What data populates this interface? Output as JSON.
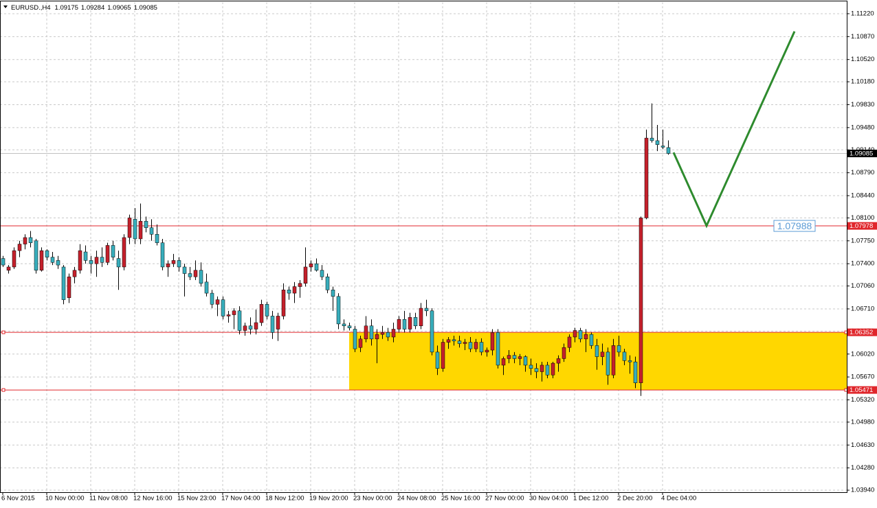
{
  "chart_data": {
    "type": "candlestick",
    "title": "EURUSD.,H4",
    "bull_color": "#c4202b",
    "bear_color": "#38aebc",
    "ylim": [
      1.03909,
      1.11398
    ],
    "yticks": [
      {
        "value": 1.1122,
        "label": "1.11220"
      },
      {
        "value": 1.1087,
        "label": "1.10870"
      },
      {
        "value": 1.1052,
        "label": "1.10520"
      },
      {
        "value": 1.1018,
        "label": "1.10180"
      },
      {
        "value": 1.0983,
        "label": "1.09830"
      },
      {
        "value": 1.0948,
        "label": "1.09480"
      },
      {
        "value": 1.0914,
        "label": "1.09140"
      },
      {
        "value": 1.0879,
        "label": "1.08790"
      },
      {
        "value": 1.0844,
        "label": "1.08440"
      },
      {
        "value": 1.081,
        "label": "1.08100"
      },
      {
        "value": 1.0775,
        "label": "1.07750"
      },
      {
        "value": 1.074,
        "label": "1.07400"
      },
      {
        "value": 1.0706,
        "label": "1.07060"
      },
      {
        "value": 1.0671,
        "label": "1.06710"
      },
      {
        "value": 1.0637,
        "label": "1.06370"
      },
      {
        "value": 1.0602,
        "label": "1.06020"
      },
      {
        "value": 1.0567,
        "label": "1.05670"
      },
      {
        "value": 1.0532,
        "label": "1.05320"
      },
      {
        "value": 1.0498,
        "label": "1.04980"
      },
      {
        "value": 1.0463,
        "label": "1.04630"
      },
      {
        "value": 1.0428,
        "label": "1.04280"
      },
      {
        "value": 1.0394,
        "label": "1.03940"
      }
    ],
    "grid": true,
    "categories": [
      "6 Nov 2015",
      null,
      null,
      null,
      null,
      null,
      null,
      null,
      "10 Nov 00:00",
      null,
      null,
      null,
      null,
      null,
      null,
      null,
      "11 Nov 08:00",
      null,
      null,
      null,
      null,
      null,
      null,
      null,
      "12 Nov 16:00",
      null,
      null,
      null,
      null,
      null,
      null,
      null,
      "15 Nov 23:00",
      null,
      null,
      null,
      null,
      null,
      null,
      null,
      "17 Nov 04:00",
      null,
      null,
      null,
      null,
      null,
      null,
      null,
      "18 Nov 12:00",
      null,
      null,
      null,
      null,
      null,
      null,
      null,
      "19 Nov 20:00",
      null,
      null,
      null,
      null,
      null,
      null,
      null,
      "23 Nov 00:00",
      null,
      null,
      null,
      null,
      null,
      null,
      null,
      "24 Nov 08:00",
      null,
      null,
      null,
      null,
      null,
      null,
      null,
      "25 Nov 16:00",
      null,
      null,
      null,
      null,
      null,
      null,
      null,
      "27 Nov 00:00",
      null,
      null,
      null,
      null,
      null,
      null,
      null,
      "30 Nov 04:00",
      null,
      null,
      null,
      null,
      null,
      null,
      null,
      "1 Dec 12:00",
      null,
      null,
      null,
      null,
      null,
      null,
      null,
      "2 Dec 20:00",
      null,
      null,
      null,
      null,
      null,
      null,
      null,
      "4 Dec 04:00",
      null
    ],
    "candles": [
      [
        1.0748,
        1.0752,
        1.0735,
        1.0738
      ],
      [
        1.073,
        1.0738,
        1.0725,
        1.0735
      ],
      [
        1.0735,
        1.0765,
        1.0732,
        1.076
      ],
      [
        1.076,
        1.0775,
        1.075,
        1.077
      ],
      [
        1.077,
        1.0785,
        1.0762,
        1.078
      ],
      [
        1.078,
        1.079,
        1.0765,
        1.0772
      ],
      [
        1.0775,
        1.0778,
        1.0725,
        1.073
      ],
      [
        1.073,
        1.0765,
        1.0728,
        1.076
      ],
      [
        1.076,
        1.0762,
        1.0745,
        1.075
      ],
      [
        1.075,
        1.0758,
        1.0738,
        1.0742
      ],
      [
        1.0745,
        1.0752,
        1.0732,
        1.0738
      ],
      [
        1.0735,
        1.0738,
        1.0678,
        1.0685
      ],
      [
        1.0688,
        1.0725,
        1.068,
        1.072
      ],
      [
        1.072,
        1.0735,
        1.071,
        1.073
      ],
      [
        1.073,
        1.077,
        1.0725,
        1.076
      ],
      [
        1.0758,
        1.0768,
        1.074,
        1.0745
      ],
      [
        1.0745,
        1.0752,
        1.0725,
        1.074
      ],
      [
        1.074,
        1.076,
        1.072,
        1.075
      ],
      [
        1.075,
        1.0765,
        1.0735,
        1.0742
      ],
      [
        1.0742,
        1.0772,
        1.0738,
        1.0768
      ],
      [
        1.0768,
        1.0775,
        1.0745,
        1.075
      ],
      [
        1.0748,
        1.076,
        1.07,
        1.0735
      ],
      [
        1.0735,
        1.0785,
        1.073,
        1.078
      ],
      [
        1.078,
        1.0815,
        1.077,
        1.081
      ],
      [
        1.0808,
        1.0825,
        1.077,
        1.0778
      ],
      [
        1.0778,
        1.0832,
        1.077,
        1.0805
      ],
      [
        1.0805,
        1.0812,
        1.0788,
        1.0795
      ],
      [
        1.0795,
        1.0808,
        1.0775,
        1.0785
      ],
      [
        1.0785,
        1.08,
        1.0768,
        1.0772
      ],
      [
        1.0772,
        1.0778,
        1.073,
        1.0735
      ],
      [
        1.0735,
        1.0745,
        1.072,
        1.074
      ],
      [
        1.074,
        1.0755,
        1.0735,
        1.0745
      ],
      [
        1.0745,
        1.075,
        1.0728,
        1.0735
      ],
      [
        1.0735,
        1.074,
        1.069,
        1.0725
      ],
      [
        1.0725,
        1.0735,
        1.0715,
        1.072
      ],
      [
        1.072,
        1.0745,
        1.0715,
        1.073
      ],
      [
        1.073,
        1.0742,
        1.0705,
        1.071
      ],
      [
        1.0712,
        1.0725,
        1.069,
        1.0695
      ],
      [
        1.0695,
        1.07,
        1.0672,
        1.0678
      ],
      [
        1.0678,
        1.069,
        1.066,
        1.0685
      ],
      [
        1.0685,
        1.069,
        1.0655,
        1.066
      ],
      [
        1.066,
        1.0668,
        1.065,
        1.0662
      ],
      [
        1.0662,
        1.0672,
        1.064,
        1.0668
      ],
      [
        1.0668,
        1.0675,
        1.0632,
        1.0638
      ],
      [
        1.0638,
        1.065,
        1.063,
        1.0645
      ],
      [
        1.0645,
        1.0658,
        1.0632,
        1.064
      ],
      [
        1.064,
        1.067,
        1.0632,
        1.065
      ],
      [
        1.065,
        1.0685,
        1.0645,
        1.0678
      ],
      [
        1.0678,
        1.0682,
        1.0655,
        1.066
      ],
      [
        1.066,
        1.0668,
        1.0625,
        1.0635
      ],
      [
        1.064,
        1.0665,
        1.0622,
        1.066
      ],
      [
        1.066,
        1.071,
        1.0655,
        1.07
      ],
      [
        1.07,
        1.0705,
        1.0685,
        1.0695
      ],
      [
        1.0695,
        1.0712,
        1.068,
        1.0705
      ],
      [
        1.0705,
        1.0715,
        1.0688,
        1.071
      ],
      [
        1.071,
        1.0765,
        1.0705,
        1.0735
      ],
      [
        1.0735,
        1.0745,
        1.0728,
        1.074
      ],
      [
        1.074,
        1.0748,
        1.0728,
        1.073
      ],
      [
        1.073,
        1.0738,
        1.0715,
        1.072
      ],
      [
        1.072,
        1.0725,
        1.0695,
        1.07
      ],
      [
        1.07,
        1.0705,
        1.0668,
        1.069
      ],
      [
        1.069,
        1.0695,
        1.064,
        1.0648
      ],
      [
        1.0648,
        1.0655,
        1.0638,
        1.0645
      ],
      [
        1.0645,
        1.065,
        1.0638,
        1.0642
      ],
      [
        1.064,
        1.0645,
        1.0605,
        1.061
      ],
      [
        1.0612,
        1.063,
        1.0605,
        1.0625
      ],
      [
        1.0625,
        1.066,
        1.062,
        1.0645
      ],
      [
        1.0645,
        1.0655,
        1.0615,
        1.0625
      ],
      [
        1.0625,
        1.064,
        1.0588,
        1.0632
      ],
      [
        1.0632,
        1.0645,
        1.0625,
        1.0635
      ],
      [
        1.0635,
        1.0642,
        1.0622,
        1.0628
      ],
      [
        1.0628,
        1.065,
        1.062,
        1.064
      ],
      [
        1.064,
        1.066,
        1.0635,
        1.0655
      ],
      [
        1.0655,
        1.0668,
        1.0635,
        1.064
      ],
      [
        1.064,
        1.0665,
        1.0635,
        1.0658
      ],
      [
        1.0658,
        1.0665,
        1.064,
        1.0645
      ],
      [
        1.0645,
        1.068,
        1.064,
        1.0672
      ],
      [
        1.0672,
        1.0685,
        1.066,
        1.0668
      ],
      [
        1.0668,
        1.0672,
        1.06,
        1.0605
      ],
      [
        1.0605,
        1.0615,
        1.057,
        1.058
      ],
      [
        1.058,
        1.0625,
        1.0575,
        1.062
      ],
      [
        1.062,
        1.0628,
        1.061,
        1.0624
      ],
      [
        1.0624,
        1.063,
        1.0615,
        1.0622
      ],
      [
        1.0622,
        1.063,
        1.0612,
        1.0618
      ],
      [
        1.0618,
        1.0625,
        1.0608,
        1.062
      ],
      [
        1.062,
        1.0628,
        1.0605,
        1.061
      ],
      [
        1.061,
        1.0625,
        1.0605,
        1.062
      ],
      [
        1.062,
        1.0626,
        1.06,
        1.0605
      ],
      [
        1.0605,
        1.0612,
        1.0598,
        1.0608
      ],
      [
        1.0608,
        1.064,
        1.06,
        1.0635
      ],
      [
        1.0635,
        1.064,
        1.058,
        1.0585
      ],
      [
        1.0585,
        1.0598,
        1.057,
        1.0595
      ],
      [
        1.0595,
        1.0608,
        1.0588,
        1.06
      ],
      [
        1.06,
        1.0605,
        1.0588,
        1.0595
      ],
      [
        1.0595,
        1.0602,
        1.0585,
        1.0598
      ],
      [
        1.0598,
        1.06,
        1.0575,
        1.0585
      ],
      [
        1.0585,
        1.0595,
        1.057,
        1.058
      ],
      [
        1.058,
        1.0588,
        1.0565,
        1.0575
      ],
      [
        1.0575,
        1.059,
        1.056,
        1.0585
      ],
      [
        1.0585,
        1.059,
        1.0565,
        1.057
      ],
      [
        1.057,
        1.059,
        1.0565,
        1.0588
      ],
      [
        1.0588,
        1.06,
        1.0575,
        1.0595
      ],
      [
        1.0595,
        1.0618,
        1.059,
        1.0612
      ],
      [
        1.0612,
        1.0632,
        1.0605,
        1.0628
      ],
      [
        1.0628,
        1.0642,
        1.062,
        1.0638
      ],
      [
        1.0638,
        1.0642,
        1.062,
        1.0625
      ],
      [
        1.0625,
        1.064,
        1.0605,
        1.0632
      ],
      [
        1.0632,
        1.0635,
        1.061,
        1.0615
      ],
      [
        1.0615,
        1.0625,
        1.0578,
        1.0598
      ],
      [
        1.0598,
        1.0618,
        1.0585,
        1.0605
      ],
      [
        1.0605,
        1.0612,
        1.0555,
        1.057
      ],
      [
        1.057,
        1.0625,
        1.0565,
        1.0615
      ],
      [
        1.0615,
        1.063,
        1.0598,
        1.0605
      ],
      [
        1.0605,
        1.061,
        1.0585,
        1.0592
      ],
      [
        1.0592,
        1.06,
        1.0572,
        1.059
      ],
      [
        1.059,
        1.0598,
        1.055,
        1.0558
      ],
      [
        1.0558,
        1.0812,
        1.0538,
        1.081
      ],
      [
        1.081,
        1.0945,
        1.0808,
        1.0932
      ],
      [
        1.0932,
        1.0985,
        1.0925,
        1.0928
      ],
      [
        1.0928,
        1.0952,
        1.0912,
        1.0922
      ],
      [
        1.092,
        1.0945,
        1.0915,
        1.0918
      ],
      [
        1.09175,
        1.09284,
        1.09065,
        1.09085
      ]
    ],
    "levels": [
      {
        "value": 1.07978,
        "color": "#e0262b"
      },
      {
        "value": 1.06352,
        "color": "#e0262b"
      },
      {
        "value": 1.05471,
        "color": "#e0262b"
      }
    ],
    "current_price_color": "#c0c0c0",
    "zone": {
      "start_bar": 63,
      "color": "#ffd700"
    },
    "projection": {
      "color": "#2e8b2e",
      "x": [
        122,
        128,
        144
      ],
      "y": [
        1.091,
        1.0798,
        1.1095
      ]
    },
    "annotation": "1.07988"
  }
}
